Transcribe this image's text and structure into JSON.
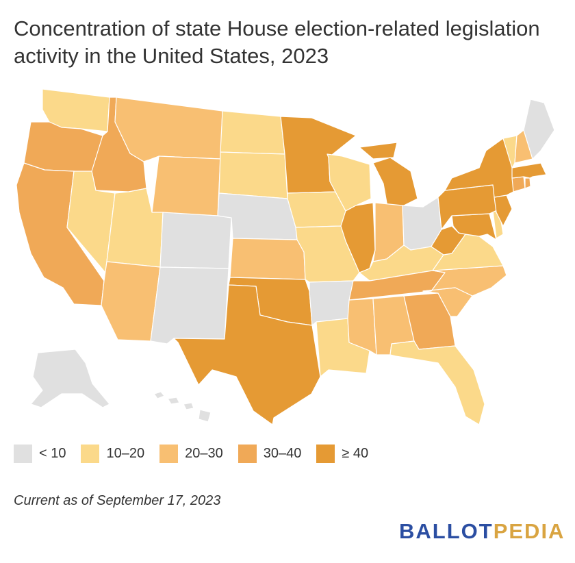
{
  "title": "Concentration of state House election-related legislation activity in the United States, 2023",
  "note": "Current as of September 17, 2023",
  "logo": {
    "part1": "BALLOT",
    "part2": "PEDIA"
  },
  "colors": {
    "lt10": "#e0e0e0",
    "10to20": "#fbd98a",
    "20to30": "#f8bf72",
    "30to40": "#f0a957",
    "ge40": "#e59a34",
    "logo_blue": "#2b4ea2",
    "logo_gold": "#d9a441"
  },
  "legend": [
    {
      "label": "< 10",
      "key": "lt10"
    },
    {
      "label": "10–20",
      "key": "10to20"
    },
    {
      "label": "20–30",
      "key": "20to30"
    },
    {
      "label": "30–40",
      "key": "30to40"
    },
    {
      "label": "≥ 40",
      "key": "ge40"
    }
  ],
  "states": [
    {
      "abbr": "WA",
      "bin": "10to20"
    },
    {
      "abbr": "OR",
      "bin": "30to40"
    },
    {
      "abbr": "CA",
      "bin": "30to40"
    },
    {
      "abbr": "ID",
      "bin": "30to40"
    },
    {
      "abbr": "NV",
      "bin": "10to20"
    },
    {
      "abbr": "MT",
      "bin": "20to30"
    },
    {
      "abbr": "WY",
      "bin": "20to30"
    },
    {
      "abbr": "UT",
      "bin": "10to20"
    },
    {
      "abbr": "AZ",
      "bin": "20to30"
    },
    {
      "abbr": "CO",
      "bin": "lt10"
    },
    {
      "abbr": "NM",
      "bin": "lt10"
    },
    {
      "abbr": "ND",
      "bin": "10to20"
    },
    {
      "abbr": "SD",
      "bin": "10to20"
    },
    {
      "abbr": "NE",
      "bin": "lt10"
    },
    {
      "abbr": "KS",
      "bin": "20to30"
    },
    {
      "abbr": "OK",
      "bin": "ge40"
    },
    {
      "abbr": "TX",
      "bin": "ge40"
    },
    {
      "abbr": "MN",
      "bin": "ge40"
    },
    {
      "abbr": "IA",
      "bin": "10to20"
    },
    {
      "abbr": "MO",
      "bin": "10to20"
    },
    {
      "abbr": "AR",
      "bin": "lt10"
    },
    {
      "abbr": "LA",
      "bin": "10to20"
    },
    {
      "abbr": "WI",
      "bin": "10to20"
    },
    {
      "abbr": "IL",
      "bin": "ge40"
    },
    {
      "abbr": "MI",
      "bin": "ge40"
    },
    {
      "abbr": "IN",
      "bin": "20to30"
    },
    {
      "abbr": "OH",
      "bin": "lt10"
    },
    {
      "abbr": "KY",
      "bin": "10to20"
    },
    {
      "abbr": "TN",
      "bin": "30to40"
    },
    {
      "abbr": "MS",
      "bin": "20to30"
    },
    {
      "abbr": "AL",
      "bin": "20to30"
    },
    {
      "abbr": "GA",
      "bin": "30to40"
    },
    {
      "abbr": "FL",
      "bin": "10to20"
    },
    {
      "abbr": "SC",
      "bin": "20to30"
    },
    {
      "abbr": "NC",
      "bin": "20to30"
    },
    {
      "abbr": "VA",
      "bin": "10to20"
    },
    {
      "abbr": "WV",
      "bin": "ge40"
    },
    {
      "abbr": "MD",
      "bin": "ge40"
    },
    {
      "abbr": "DE",
      "bin": "10to20"
    },
    {
      "abbr": "PA",
      "bin": "ge40"
    },
    {
      "abbr": "NJ",
      "bin": "ge40"
    },
    {
      "abbr": "NY",
      "bin": "ge40"
    },
    {
      "abbr": "CT",
      "bin": "30to40"
    },
    {
      "abbr": "RI",
      "bin": "30to40"
    },
    {
      "abbr": "MA",
      "bin": "ge40"
    },
    {
      "abbr": "VT",
      "bin": "10to20"
    },
    {
      "abbr": "NH",
      "bin": "20to30"
    },
    {
      "abbr": "ME",
      "bin": "lt10"
    },
    {
      "abbr": "AK",
      "bin": "lt10"
    },
    {
      "abbr": "HI",
      "bin": "lt10"
    }
  ]
}
